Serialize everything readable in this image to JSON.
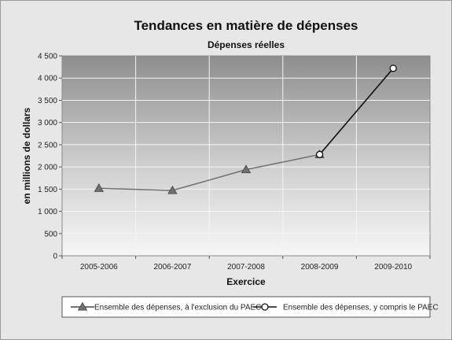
{
  "chart_data": {
    "type": "line",
    "title": "Tendances en matière de dépenses",
    "subtitle": "Dépenses réelles",
    "xlabel": "Exercice",
    "ylabel": "en millions de dollars",
    "categories": [
      "2005-2006",
      "2006-2007",
      "2007-2008",
      "2008-2009",
      "2009-2010"
    ],
    "ylim": [
      0,
      4500
    ],
    "yticks": [
      0,
      500,
      1000,
      1500,
      2000,
      2500,
      3000,
      3500,
      4000,
      4500
    ],
    "ytick_labels": [
      "0",
      "500",
      "1 000",
      "1 500",
      "2 000",
      "2 500",
      "3 000",
      "3 500",
      "4 000",
      "4 500"
    ],
    "grid": true,
    "legend_position": "bottom",
    "series": [
      {
        "name": "Ensemble des dépenses, à l'exclusion du PAEC",
        "marker": "triangle",
        "color": "#707070",
        "values": [
          1520,
          1470,
          1940,
          2280,
          null
        ]
      },
      {
        "name": "Ensemble des dépenses, y compris le PAEC",
        "marker": "circle",
        "color": "#111111",
        "values": [
          null,
          null,
          null,
          2280,
          4220
        ]
      }
    ]
  }
}
